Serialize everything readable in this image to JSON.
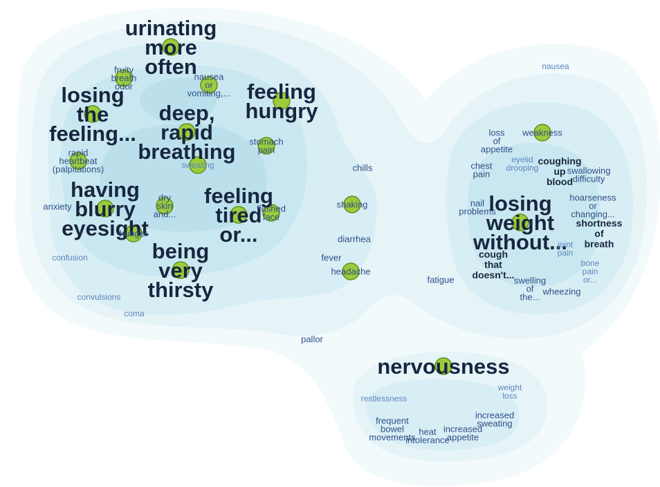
{
  "colors": {
    "contour_outer": "#f2fafc",
    "contour_1": "#e6f4f8",
    "contour_2": "#d8eef5",
    "contour_3": "#c9e7f0",
    "contour_4": "#bbe0ec",
    "node_fill": "#9ccc3c",
    "node_stroke": "#5f8f1c",
    "label_large": "#17263f",
    "label_medium": "#2f4f86",
    "label_small": "#5d84bd"
  },
  "nodes": [
    {
      "id": "urinating",
      "name": "urinating more often",
      "lines": [
        "urinating",
        "more",
        "often"
      ],
      "weight": 3
    },
    {
      "id": "fruity-breath",
      "name": "fruity breath odor",
      "lines": [
        "fruity",
        "breath",
        "odor"
      ],
      "weight": 1
    },
    {
      "id": "nausea-vomiting",
      "name": "nausea or vomiting",
      "lines": [
        "nausea",
        "or",
        "vomiting,..."
      ],
      "weight": 1
    },
    {
      "id": "feeling-hungry",
      "name": "feeling hungry",
      "lines": [
        "feeling",
        "hungry"
      ],
      "weight": 3
    },
    {
      "id": "losing-feeling",
      "name": "losing the feeling",
      "lines": [
        "losing",
        "the",
        "feeling..."
      ],
      "weight": 3
    },
    {
      "id": "deep-breathing",
      "name": "deep, rapid breathing",
      "lines": [
        "deep,",
        "rapid",
        "breathing"
      ],
      "weight": 3
    },
    {
      "id": "stomach-pain",
      "name": "stomach pain",
      "lines": [
        "stomach",
        "pain"
      ],
      "weight": 1
    },
    {
      "id": "sweating",
      "name": "sweating",
      "lines": [
        "sweating"
      ],
      "weight": 0
    },
    {
      "id": "rapid-heartbeat",
      "name": "rapid heartbeat",
      "lines": [
        "rapid",
        "heartbeat",
        "(palpitations)"
      ],
      "weight": 1
    },
    {
      "id": "blurry-eyesight",
      "name": "having blurry eyesight",
      "lines": [
        "having",
        "blurry",
        "eyesight"
      ],
      "weight": 3
    },
    {
      "id": "dry-skin",
      "name": "dry skin and",
      "lines": [
        "dry",
        "skin",
        "and..."
      ],
      "weight": 1
    },
    {
      "id": "anxiety",
      "name": "anxiety",
      "lines": [
        "anxiety"
      ],
      "weight": 1
    },
    {
      "id": "hunger",
      "name": "hunger",
      "lines": [
        "hunger"
      ],
      "weight": 1
    },
    {
      "id": "feeling-tired",
      "name": "feeling tired or",
      "lines": [
        "feeling",
        "tired",
        "or..."
      ],
      "weight": 3
    },
    {
      "id": "flushed-face",
      "name": "flushed face",
      "lines": [
        "flushed",
        "face"
      ],
      "weight": 1
    },
    {
      "id": "chills",
      "name": "chills",
      "lines": [
        "chills"
      ],
      "weight": 1
    },
    {
      "id": "shaking",
      "name": "shaking",
      "lines": [
        "shaking"
      ],
      "weight": 1
    },
    {
      "id": "diarrhea",
      "name": "diarrhea",
      "lines": [
        "diarrhea"
      ],
      "weight": 1
    },
    {
      "id": "fever",
      "name": "fever",
      "lines": [
        "fever"
      ],
      "weight": 1
    },
    {
      "id": "headache",
      "name": "headache",
      "lines": [
        "headache"
      ],
      "weight": 1
    },
    {
      "id": "confusion",
      "name": "confusion",
      "lines": [
        "confusion"
      ],
      "weight": 0
    },
    {
      "id": "being-thirsty",
      "name": "being very thirsty",
      "lines": [
        "being",
        "very",
        "thirsty"
      ],
      "weight": 3
    },
    {
      "id": "convulsions",
      "name": "convulsions",
      "lines": [
        "convulsions"
      ],
      "weight": 0
    },
    {
      "id": "coma",
      "name": "coma",
      "lines": [
        "coma"
      ],
      "weight": 0
    },
    {
      "id": "pallor",
      "name": "pallor",
      "lines": [
        "pallor"
      ],
      "weight": 1
    },
    {
      "id": "fatigue",
      "name": "fatigue",
      "lines": [
        "fatigue"
      ],
      "weight": 1
    },
    {
      "id": "nausea",
      "name": "nausea",
      "lines": [
        "nausea"
      ],
      "weight": 0
    },
    {
      "id": "loss-appetite",
      "name": "loss of appetite",
      "lines": [
        "loss",
        "of",
        "appetite"
      ],
      "weight": 1
    },
    {
      "id": "weakness",
      "name": "weakness",
      "lines": [
        "weakness"
      ],
      "weight": 1
    },
    {
      "id": "eyelid-drooping",
      "name": "eyelid drooping",
      "lines": [
        "eyelid",
        "drooping"
      ],
      "weight": 0
    },
    {
      "id": "chest-pain",
      "name": "chest pain",
      "lines": [
        "chest",
        "pain"
      ],
      "weight": 1
    },
    {
      "id": "coughing-blood",
      "name": "coughing up blood",
      "lines": [
        "coughing",
        "up",
        "blood"
      ],
      "weight": 2
    },
    {
      "id": "swallowing-difficulty",
      "name": "swallowing difficulty",
      "lines": [
        "swallowing",
        "difficulty"
      ],
      "weight": 1
    },
    {
      "id": "hoarseness",
      "name": "hoarseness or changing",
      "lines": [
        "hoarseness",
        "or",
        "changing..."
      ],
      "weight": 1
    },
    {
      "id": "nail-problems",
      "name": "nail problems",
      "lines": [
        "nail",
        "problems"
      ],
      "weight": 1
    },
    {
      "id": "losing-weight",
      "name": "losing weight without",
      "lines": [
        "losing",
        "weight",
        "without..."
      ],
      "weight": 3
    },
    {
      "id": "shortness-breath",
      "name": "shortness of breath",
      "lines": [
        "shortness",
        "of",
        "breath"
      ],
      "weight": 2
    },
    {
      "id": "joint-pain",
      "name": "joint pain",
      "lines": [
        "joint",
        "pain"
      ],
      "weight": 0
    },
    {
      "id": "cough",
      "name": "cough that doesn't",
      "lines": [
        "cough",
        "that",
        "doesn't..."
      ],
      "weight": 2
    },
    {
      "id": "bone-pain",
      "name": "bone pain or",
      "lines": [
        "bone",
        "pain",
        "or..."
      ],
      "weight": 0
    },
    {
      "id": "swelling",
      "name": "swelling of the",
      "lines": [
        "swelling",
        "of",
        "the..."
      ],
      "weight": 1
    },
    {
      "id": "wheezing",
      "name": "wheezing",
      "lines": [
        "wheezing"
      ],
      "weight": 1
    },
    {
      "id": "nervousness",
      "name": "nervousness",
      "lines": [
        "nervousness"
      ],
      "weight": 3
    },
    {
      "id": "weight-loss",
      "name": "weight loss",
      "lines": [
        "weight",
        "loss"
      ],
      "weight": 0
    },
    {
      "id": "restlessness",
      "name": "restlessness",
      "lines": [
        "restlessness"
      ],
      "weight": 0
    },
    {
      "id": "increased-sweating",
      "name": "increased sweating",
      "lines": [
        "increased",
        "sweating"
      ],
      "weight": 1
    },
    {
      "id": "frequent-bowel",
      "name": "frequent bowel movements",
      "lines": [
        "frequent",
        "bowel",
        "movements"
      ],
      "weight": 1
    },
    {
      "id": "heat-intolerance",
      "name": "heat intolerance",
      "lines": [
        "heat",
        "intolerance"
      ],
      "weight": 1
    },
    {
      "id": "increased-appetite",
      "name": "increased appetite",
      "lines": [
        "increased",
        "appetite"
      ],
      "weight": 1
    }
  ],
  "markers": [
    "urinating",
    "fruity-breath",
    "nausea-vomiting",
    "feeling-hungry",
    "losing-feeling",
    "deep-breathing",
    "stomach-pain",
    "sweating",
    "rapid-heartbeat",
    "blurry-eyesight",
    "dry-skin",
    "hunger",
    "feeling-tired",
    "flushed-face",
    "shaking",
    "headache",
    "being-thirsty",
    "weakness",
    "losing-weight",
    "nervousness"
  ]
}
